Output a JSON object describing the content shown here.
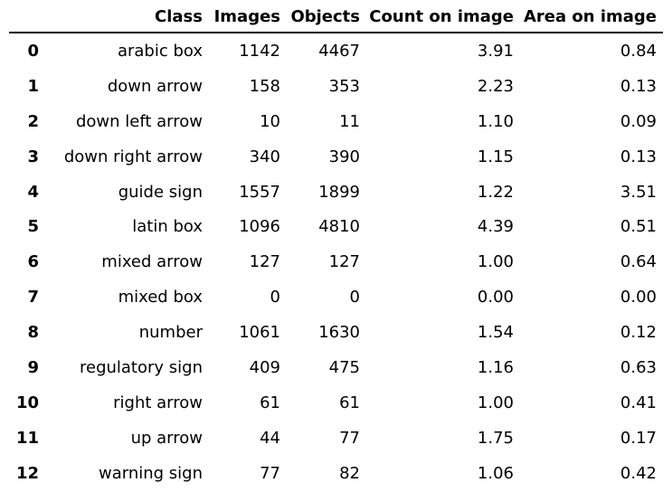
{
  "columns": {
    "class": "Class",
    "images": "Images",
    "objects": "Objects",
    "count": "Count on image",
    "area": "Area on image"
  },
  "rows": [
    {
      "index": "0",
      "class": "arabic box",
      "images": "1142",
      "objects": "4467",
      "count": "3.91",
      "area": "0.84"
    },
    {
      "index": "1",
      "class": "down arrow",
      "images": "158",
      "objects": "353",
      "count": "2.23",
      "area": "0.13"
    },
    {
      "index": "2",
      "class": "down left arrow",
      "images": "10",
      "objects": "11",
      "count": "1.10",
      "area": "0.09"
    },
    {
      "index": "3",
      "class": "down right arrow",
      "images": "340",
      "objects": "390",
      "count": "1.15",
      "area": "0.13"
    },
    {
      "index": "4",
      "class": "guide sign",
      "images": "1557",
      "objects": "1899",
      "count": "1.22",
      "area": "3.51"
    },
    {
      "index": "5",
      "class": "latin box",
      "images": "1096",
      "objects": "4810",
      "count": "4.39",
      "area": "0.51"
    },
    {
      "index": "6",
      "class": "mixed arrow",
      "images": "127",
      "objects": "127",
      "count": "1.00",
      "area": "0.64"
    },
    {
      "index": "7",
      "class": "mixed box",
      "images": "0",
      "objects": "0",
      "count": "0.00",
      "area": "0.00"
    },
    {
      "index": "8",
      "class": "number",
      "images": "1061",
      "objects": "1630",
      "count": "1.54",
      "area": "0.12"
    },
    {
      "index": "9",
      "class": "regulatory sign",
      "images": "409",
      "objects": "475",
      "count": "1.16",
      "area": "0.63"
    },
    {
      "index": "10",
      "class": "right arrow",
      "images": "61",
      "objects": "61",
      "count": "1.00",
      "area": "0.41"
    },
    {
      "index": "11",
      "class": "up arrow",
      "images": "44",
      "objects": "77",
      "count": "1.75",
      "area": "0.17"
    },
    {
      "index": "12",
      "class": "warning sign",
      "images": "77",
      "objects": "82",
      "count": "1.06",
      "area": "0.42"
    }
  ]
}
